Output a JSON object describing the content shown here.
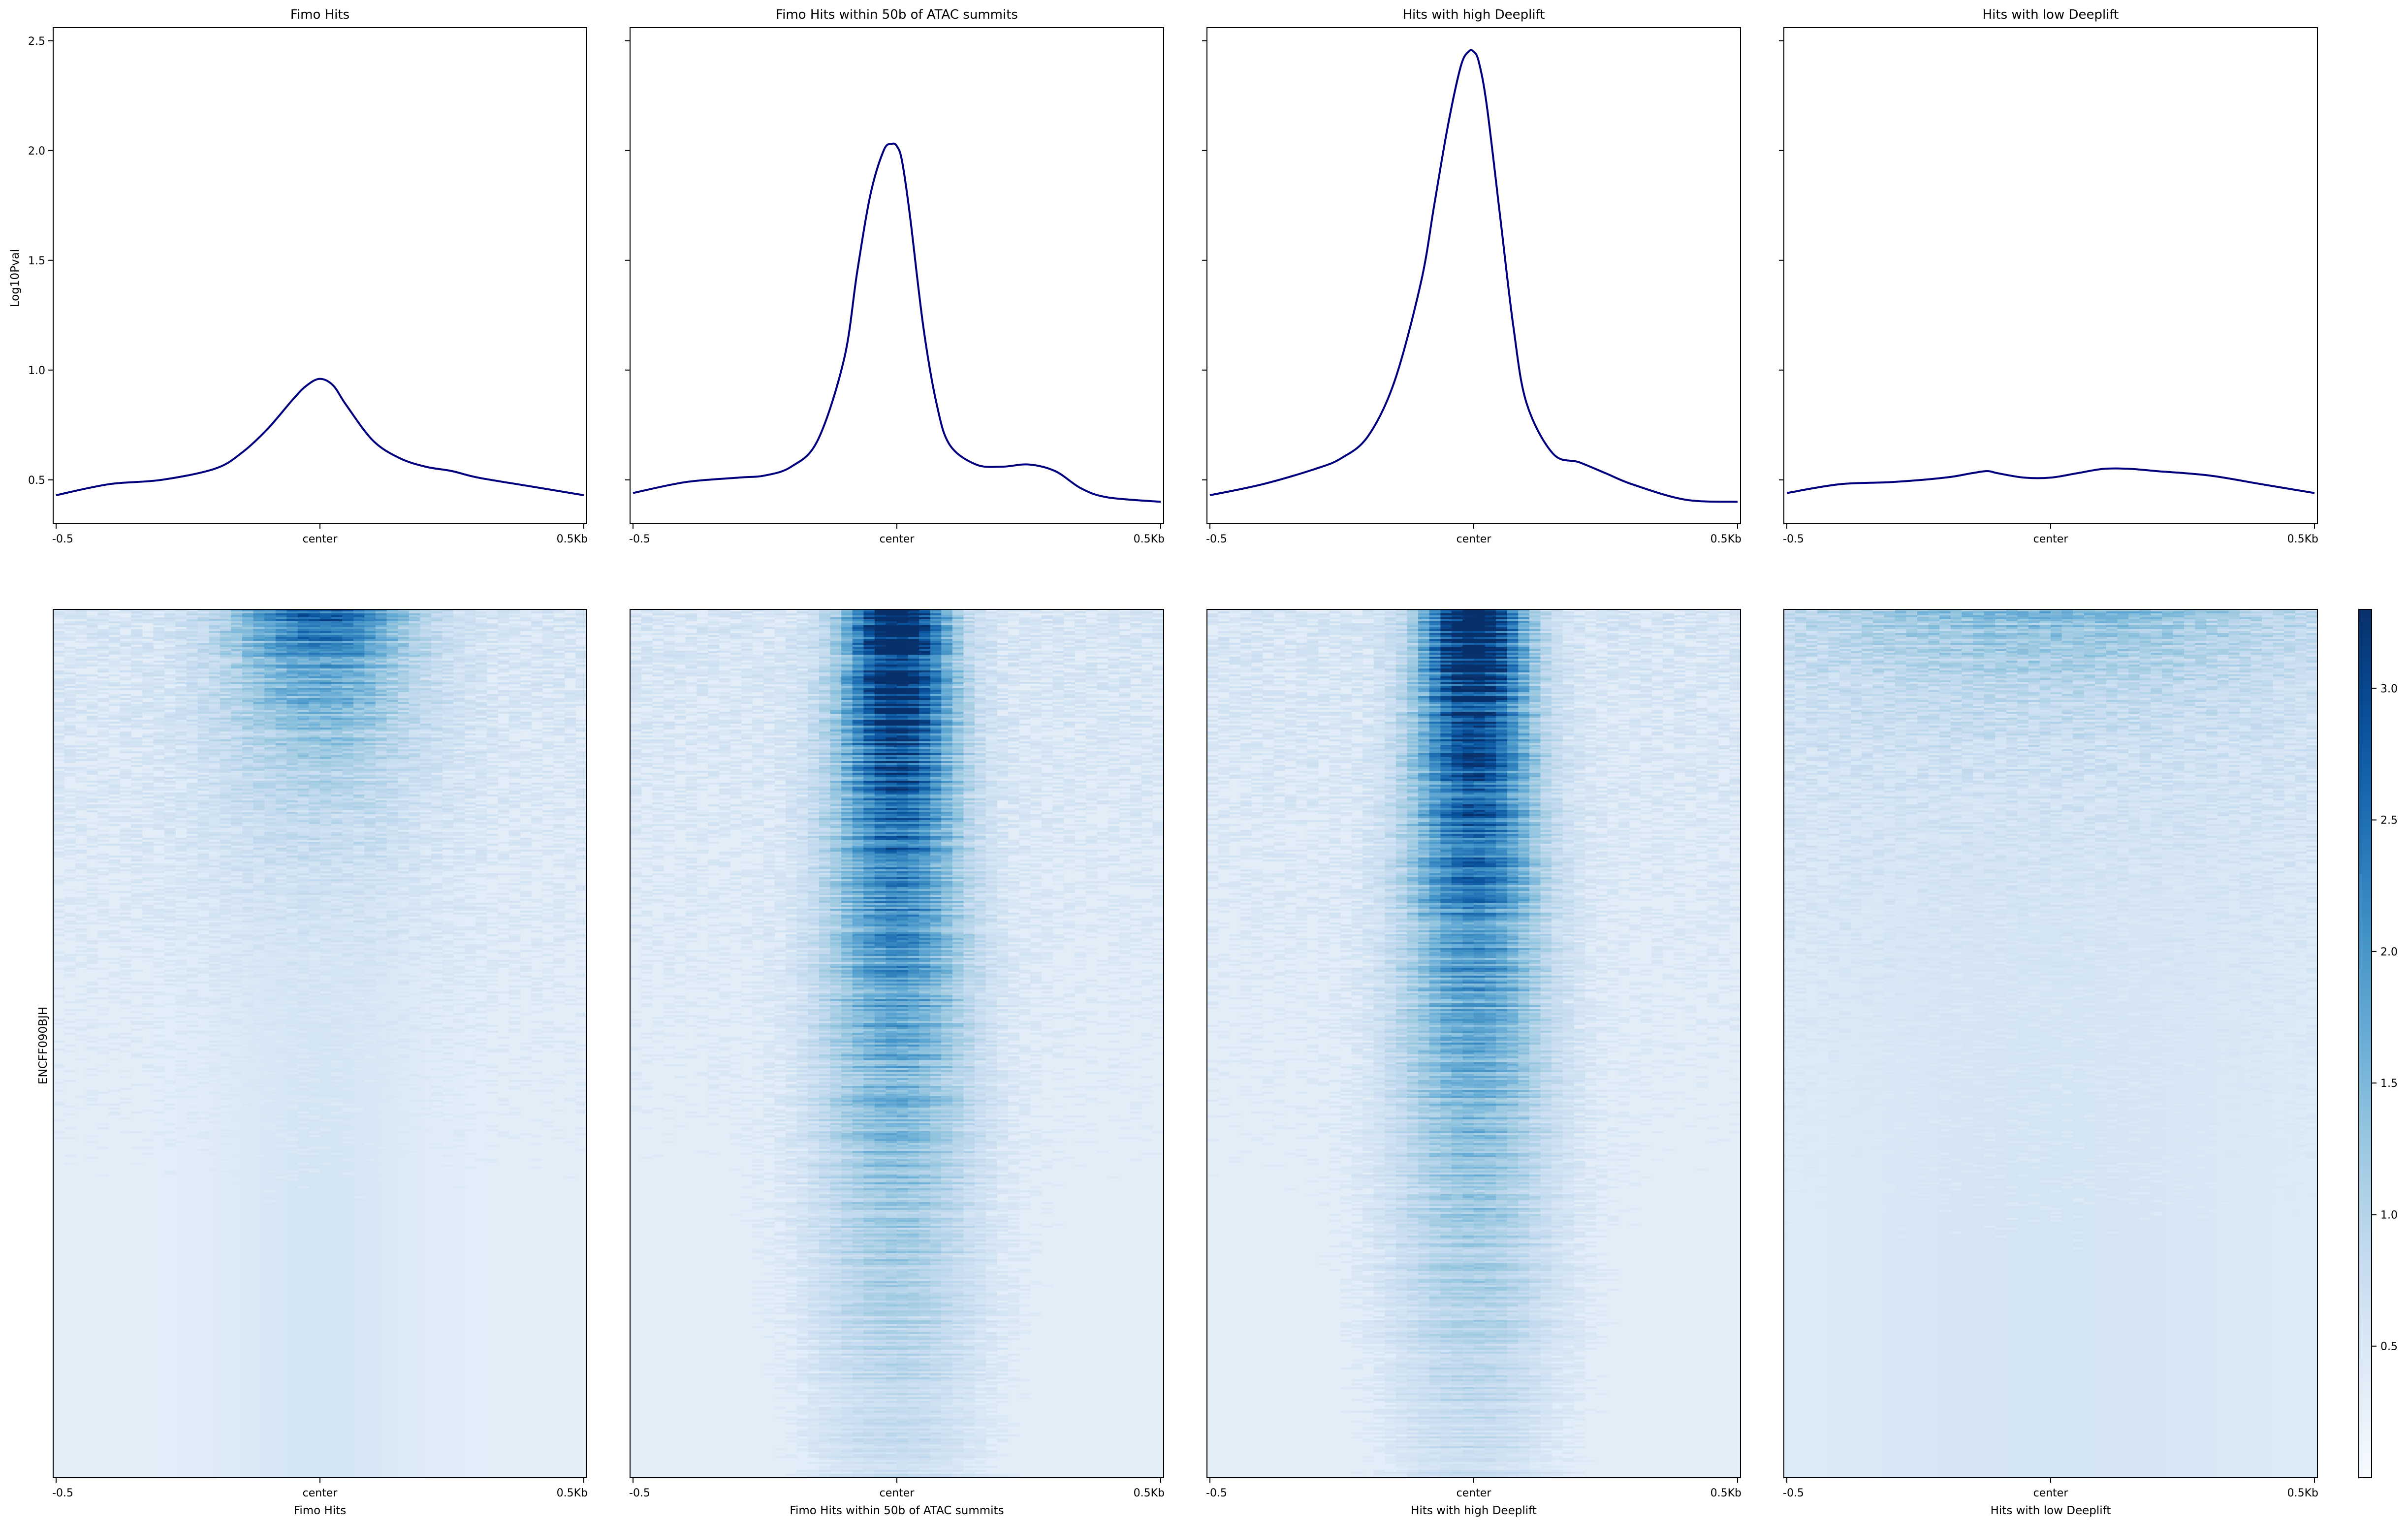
{
  "figure": {
    "profile_ylabel": "Log10Pval",
    "heatmap_ylabel": "ENCFF090BJH"
  },
  "chart_data": [
    {
      "type": "line",
      "title": "Fimo Hits",
      "x_ticks": [
        "-0.5",
        "center",
        "0.5Kb"
      ],
      "y_ticks": [
        "0.5",
        "1.0",
        "1.5",
        "2.0",
        "2.5"
      ],
      "ylim": [
        0.3,
        2.56
      ],
      "x": [
        -500,
        -400,
        -300,
        -200,
        -150,
        -100,
        -50,
        -25,
        0,
        25,
        50,
        100,
        150,
        200,
        250,
        300,
        400,
        500
      ],
      "y": [
        0.43,
        0.48,
        0.5,
        0.55,
        0.62,
        0.73,
        0.87,
        0.93,
        0.96,
        0.93,
        0.84,
        0.68,
        0.6,
        0.56,
        0.54,
        0.51,
        0.47,
        0.43
      ]
    },
    {
      "type": "line",
      "title": "Fimo Hits within 50b of ATAC summits",
      "x_ticks": [
        "-0.5",
        "center",
        "0.5Kb"
      ],
      "y_ticks": [
        "0.5",
        "1.0",
        "1.5",
        "2.0",
        "2.5"
      ],
      "ylim": [
        0.3,
        2.56
      ],
      "x": [
        -500,
        -400,
        -300,
        -250,
        -200,
        -150,
        -100,
        -75,
        -50,
        -25,
        -10,
        0,
        10,
        25,
        50,
        75,
        100,
        150,
        200,
        250,
        300,
        350,
        400,
        500
      ],
      "y": [
        0.44,
        0.49,
        0.51,
        0.52,
        0.56,
        0.68,
        1.05,
        1.45,
        1.8,
        2.0,
        2.03,
        2.02,
        1.95,
        1.7,
        1.2,
        0.85,
        0.66,
        0.57,
        0.56,
        0.57,
        0.54,
        0.46,
        0.42,
        0.4
      ]
    },
    {
      "type": "line",
      "title": "Hits with high Deeplift",
      "x_ticks": [
        "-0.5",
        "center",
        "0.5Kb"
      ],
      "y_ticks": [
        "0.5",
        "1.0",
        "1.5",
        "2.0",
        "2.5"
      ],
      "ylim": [
        0.3,
        2.56
      ],
      "x": [
        -500,
        -400,
        -300,
        -250,
        -200,
        -150,
        -100,
        -75,
        -50,
        -25,
        -10,
        0,
        10,
        25,
        50,
        75,
        100,
        150,
        200,
        250,
        300,
        400,
        500
      ],
      "y": [
        0.43,
        0.48,
        0.55,
        0.6,
        0.7,
        0.95,
        1.4,
        1.75,
        2.1,
        2.38,
        2.45,
        2.45,
        2.4,
        2.2,
        1.7,
        1.2,
        0.85,
        0.62,
        0.58,
        0.53,
        0.48,
        0.41,
        0.4
      ]
    },
    {
      "type": "line",
      "title": "Hits with low Deeplift",
      "x_ticks": [
        "-0.5",
        "center",
        "0.5Kb"
      ],
      "y_ticks": [
        "0.5",
        "1.0",
        "1.5",
        "2.0",
        "2.5"
      ],
      "ylim": [
        0.3,
        2.56
      ],
      "x": [
        -500,
        -400,
        -300,
        -200,
        -150,
        -120,
        -100,
        -50,
        0,
        50,
        100,
        150,
        200,
        300,
        400,
        500
      ],
      "y": [
        0.44,
        0.48,
        0.49,
        0.51,
        0.53,
        0.54,
        0.53,
        0.51,
        0.51,
        0.53,
        0.55,
        0.55,
        0.54,
        0.52,
        0.48,
        0.44
      ]
    },
    {
      "type": "heatmap",
      "xlabel": "Fimo Hits",
      "x_ticks": [
        "-0.5",
        "center",
        "0.5Kb"
      ],
      "peak_intensity": 2.2,
      "peak_depth_fraction": 0.14,
      "peak_width": 0.16
    },
    {
      "type": "heatmap",
      "xlabel": "Fimo Hits within 50b of ATAC summits",
      "x_ticks": [
        "-0.5",
        "center",
        "0.5Kb"
      ],
      "peak_intensity": 3.3,
      "peak_depth_fraction": 0.55,
      "peak_width": 0.09
    },
    {
      "type": "heatmap",
      "xlabel": "Hits with high Deeplift",
      "x_ticks": [
        "-0.5",
        "center",
        "0.5Kb"
      ],
      "peak_intensity": 3.3,
      "peak_depth_fraction": 0.55,
      "peak_width": 0.09
    },
    {
      "type": "heatmap",
      "xlabel": "Hits with low Deeplift",
      "x_ticks": [
        "-0.5",
        "center",
        "0.5Kb"
      ],
      "peak_intensity": 0.9,
      "peak_depth_fraction": 0.1,
      "peak_width": 0.45
    }
  ],
  "colorbar": {
    "ticks": [
      "0.5",
      "1.0",
      "1.5",
      "2.0",
      "2.5",
      "3.0"
    ],
    "tick_values": [
      0.5,
      1.0,
      1.5,
      2.0,
      2.5,
      3.0
    ],
    "range": [
      0.0,
      3.3
    ],
    "colormap": "Blues",
    "low_color": "#f7fbff",
    "high_color": "#08306b"
  },
  "line_color": "#00007f"
}
